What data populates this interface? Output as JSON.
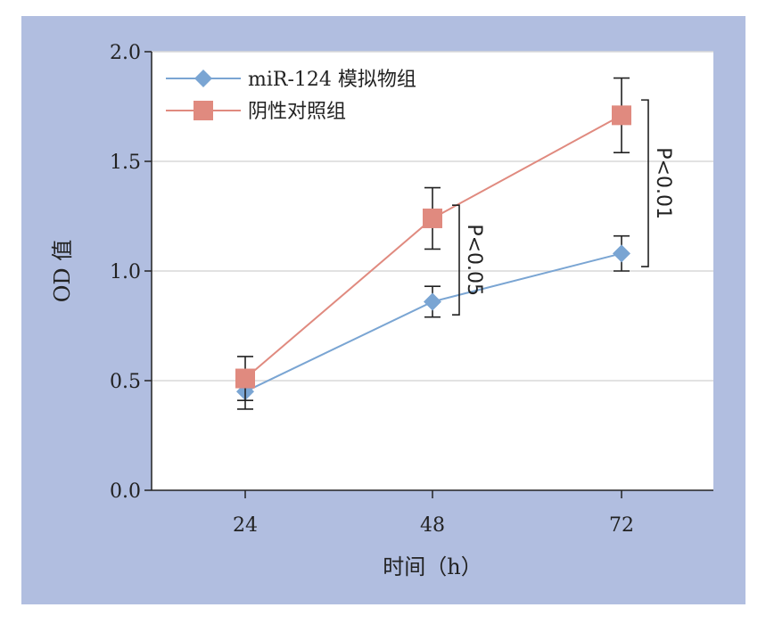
{
  "colors": {
    "panel_bg": "#b1bee0",
    "plot_bg": "#ffffff",
    "grid": "#d9d9d9",
    "axis": "#222222",
    "errorbar": "#222222"
  },
  "chart_data": {
    "type": "line",
    "xlabel": "时间（h）",
    "ylabel": "OD 值",
    "categories": [
      "24",
      "48",
      "72"
    ],
    "ylim": [
      0.0,
      2.0
    ],
    "yticks": [
      "0.0",
      "0.5",
      "1.0",
      "1.5",
      "2.0"
    ],
    "grid": true,
    "legend_placement": "top-left",
    "series": [
      {
        "name": "miR-124 模拟物组",
        "marker": "diamond",
        "color": "#7aa5d3",
        "values": [
          0.45,
          0.86,
          1.08
        ],
        "errors": [
          0.08,
          0.07,
          0.08
        ]
      },
      {
        "name": "阴性对照组",
        "marker": "square",
        "color": "#e08a7f",
        "values": [
          0.51,
          1.24,
          1.71
        ],
        "errors": [
          0.1,
          0.14,
          0.17
        ]
      }
    ],
    "annotations": [
      {
        "text": "P<0.05",
        "category": "48",
        "y_range": [
          0.8,
          1.3
        ]
      },
      {
        "text": "P<0.01",
        "category": "72",
        "y_range": [
          1.02,
          1.78
        ]
      }
    ]
  }
}
